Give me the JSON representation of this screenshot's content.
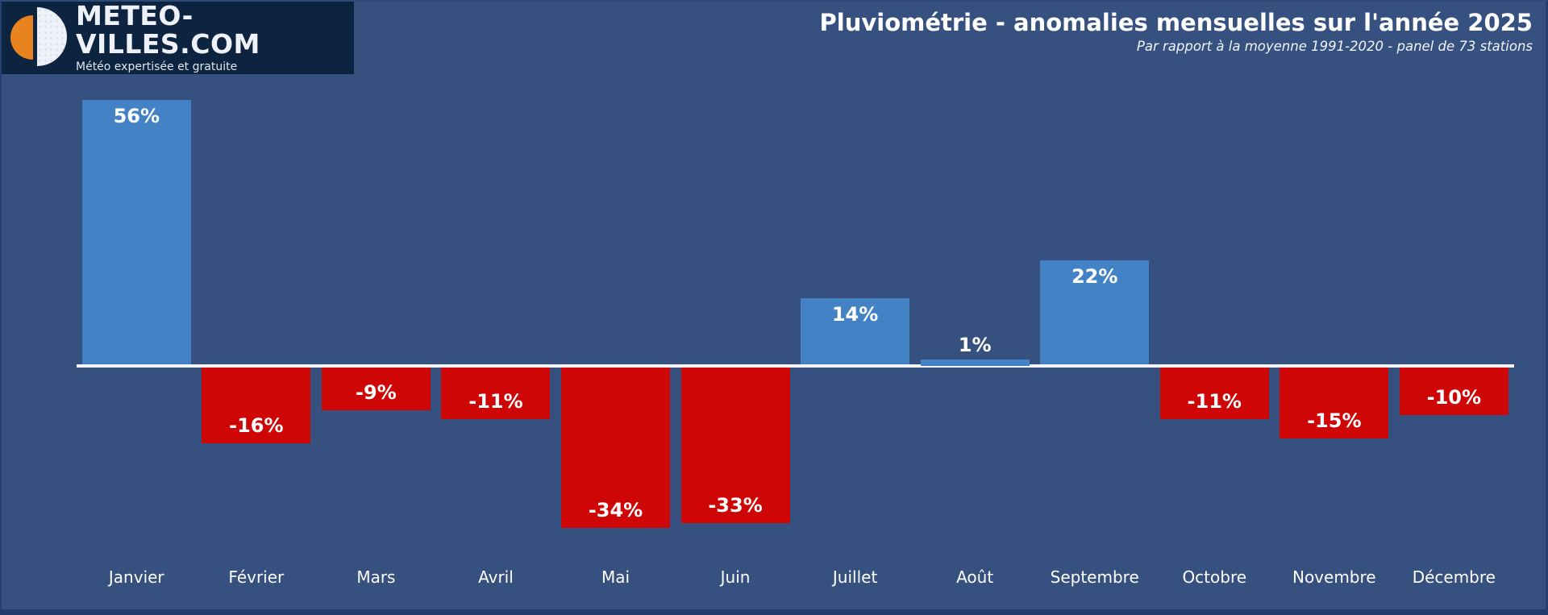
{
  "logo": {
    "title": "METEO-VILLES.COM",
    "tagline": "Météo expertisée et gratuite"
  },
  "colors": {
    "background": "#36517f",
    "logo_background": "#0d2440",
    "logo_orange": "#e8831f",
    "positive_bar": "#4382c4",
    "negative_bar": "#cf0606",
    "axis_line": "#f2f4f7",
    "text": "#ffffff"
  },
  "chart_data": {
    "type": "bar",
    "title": "Pluviométrie - anomalies mensuelles sur l'année 2025",
    "subtitle": "Par rapport à la moyenne 1991-2020 - panel de 73 stations",
    "categories": [
      "Janvier",
      "Février",
      "Mars",
      "Avril",
      "Mai",
      "Juin",
      "Juillet",
      "Août",
      "Septembre",
      "Octobre",
      "Novembre",
      "Décembre"
    ],
    "values": [
      56,
      -16,
      -9,
      -11,
      -34,
      -33,
      14,
      1,
      22,
      -11,
      -15,
      -10
    ],
    "value_labels": [
      "56%",
      "-16%",
      "-9%",
      "-11%",
      "-34%",
      "-33%",
      "14%",
      "1%",
      "22%",
      "-11%",
      "-15%",
      "-10%"
    ],
    "unit": "%",
    "ylim": [
      -40,
      60
    ],
    "baseline": 0,
    "grid": false,
    "legend": "none",
    "positive_color": "#4382c4",
    "negative_color": "#cf0606"
  }
}
